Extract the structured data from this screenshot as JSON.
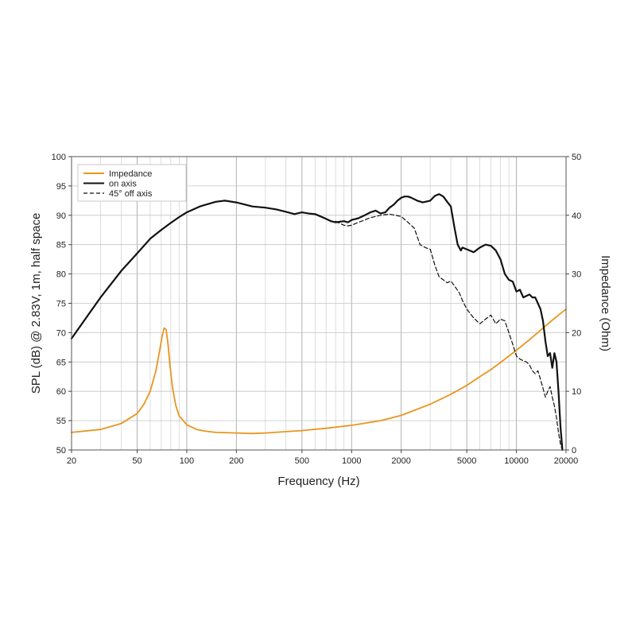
{
  "chart_data": {
    "type": "line",
    "xscale": "log",
    "xlabel": "Frequency (Hz)",
    "ylabel": "SPL (dB) @ 2.83V, 1m, half space",
    "y2label": "Impedance (Ohm)",
    "xlim": [
      20,
      20000
    ],
    "ylim": [
      50,
      100
    ],
    "y2lim": [
      0,
      50
    ],
    "grid": true,
    "legend_position": "top-left",
    "x_ticks": [
      20,
      50,
      100,
      200,
      500,
      1000,
      2000,
      5000,
      10000,
      20000
    ],
    "x_tick_labels": [
      "20",
      "50",
      "100",
      "200",
      "500",
      "1000",
      "2000",
      "5000",
      "10000",
      "20000"
    ],
    "y_ticks": [
      50,
      55,
      60,
      65,
      70,
      75,
      80,
      85,
      90,
      95,
      100
    ],
    "y_tick_labels": [
      "50",
      "55",
      "60",
      "65",
      "70",
      "75",
      "80",
      "85",
      "90",
      "95",
      "100"
    ],
    "y2_ticks": [
      0,
      10,
      20,
      30,
      40,
      50
    ],
    "y2_tick_labels": [
      "0",
      "10",
      "20",
      "30",
      "40",
      "50"
    ],
    "series": [
      {
        "name": "Impedance",
        "axis": "right",
        "color": "#e8961e",
        "dash": "solid",
        "x": [
          20,
          30,
          40,
          50,
          55,
          60,
          65,
          68,
          71,
          73,
          75,
          77,
          79,
          82,
          86,
          90,
          100,
          115,
          130,
          150,
          200,
          250,
          300,
          500,
          700,
          1000,
          1500,
          2000,
          3000,
          4000,
          5000,
          6000,
          7000,
          8000,
          10000,
          12000,
          14000,
          16000,
          18000,
          20000
        ],
        "values": [
          3.0,
          3.5,
          4.5,
          6.2,
          7.8,
          10.0,
          13.5,
          16.5,
          19.5,
          20.8,
          20.5,
          18.0,
          14.5,
          10.5,
          7.5,
          5.8,
          4.3,
          3.5,
          3.2,
          3.0,
          2.9,
          2.8,
          2.9,
          3.3,
          3.7,
          4.2,
          5.0,
          5.9,
          7.8,
          9.5,
          11.0,
          12.5,
          13.7,
          14.9,
          17.0,
          18.8,
          20.4,
          21.8,
          23.0,
          24.0
        ]
      },
      {
        "name": "on axis",
        "axis": "left",
        "color": "#111111",
        "dash": "solid",
        "x": [
          20,
          30,
          40,
          50,
          60,
          70,
          80,
          90,
          100,
          120,
          150,
          170,
          200,
          250,
          300,
          350,
          400,
          450,
          500,
          550,
          600,
          650,
          700,
          750,
          800,
          850,
          900,
          950,
          1000,
          1100,
          1200,
          1300,
          1400,
          1500,
          1600,
          1700,
          1800,
          1900,
          2000,
          2100,
          2200,
          2300,
          2500,
          2700,
          3000,
          3200,
          3400,
          3600,
          3800,
          4000,
          4200,
          4400,
          4600,
          4700,
          5000,
          5500,
          6000,
          6500,
          7000,
          7500,
          8000,
          8500,
          9000,
          9500,
          10000,
          10500,
          11000,
          12000,
          12500,
          13000,
          13500,
          14000,
          14500,
          15000,
          15500,
          16000,
          16500,
          17000,
          17500,
          18000,
          18500,
          19000
        ],
        "values": [
          69,
          76,
          80.5,
          83.5,
          86,
          87.5,
          88.7,
          89.7,
          90.5,
          91.5,
          92.3,
          92.5,
          92.2,
          91.5,
          91.3,
          91,
          90.6,
          90.2,
          90.5,
          90.3,
          90.2,
          89.8,
          89.4,
          89,
          88.8,
          88.9,
          89,
          88.8,
          89.2,
          89.5,
          90,
          90.5,
          90.8,
          90.3,
          90.5,
          91.3,
          91.8,
          92.5,
          93,
          93.2,
          93.2,
          93,
          92.5,
          92.2,
          92.5,
          93.3,
          93.6,
          93.2,
          92.3,
          91.5,
          88,
          85,
          84,
          84.5,
          84.2,
          83.7,
          84.5,
          85,
          84.8,
          84,
          82.5,
          80,
          79,
          78.7,
          77,
          77.3,
          76,
          76.5,
          76,
          76,
          75,
          74,
          72,
          68.5,
          66,
          66.5,
          64,
          66.5,
          65,
          60,
          54,
          50
        ]
      },
      {
        "name": "45° off axis",
        "axis": "left",
        "color": "#111111",
        "dash": "dashed",
        "x": [
          800,
          850,
          900,
          950,
          1000,
          1100,
          1200,
          1300,
          1500,
          1700,
          2000,
          2200,
          2400,
          2600,
          2800,
          3000,
          3200,
          3400,
          3600,
          3800,
          4000,
          4200,
          4500,
          4700,
          5000,
          5500,
          6000,
          6500,
          7000,
          7500,
          8000,
          8500,
          9000,
          9500,
          10000,
          10500,
          11000,
          11500,
          12000,
          12500,
          13000,
          13500,
          14000,
          14500,
          15000,
          15500,
          16000,
          16500,
          17000,
          17500,
          18000,
          18500,
          19000
        ],
        "values": [
          89,
          88.6,
          88.3,
          88.2,
          88.3,
          88.8,
          89.2,
          89.6,
          90,
          90.2,
          89.8,
          88.8,
          87.8,
          85,
          84.5,
          84.2,
          81.5,
          79.5,
          79,
          78.5,
          78.8,
          78,
          76.8,
          75.5,
          74,
          72.5,
          71.5,
          72.3,
          73,
          71.5,
          72.3,
          72,
          70,
          68,
          66,
          65.5,
          65.2,
          65,
          64.5,
          63.5,
          63,
          63.5,
          62,
          60.5,
          59,
          60,
          60.8,
          59,
          57.5,
          55.5,
          53,
          51,
          50
        ]
      }
    ]
  }
}
